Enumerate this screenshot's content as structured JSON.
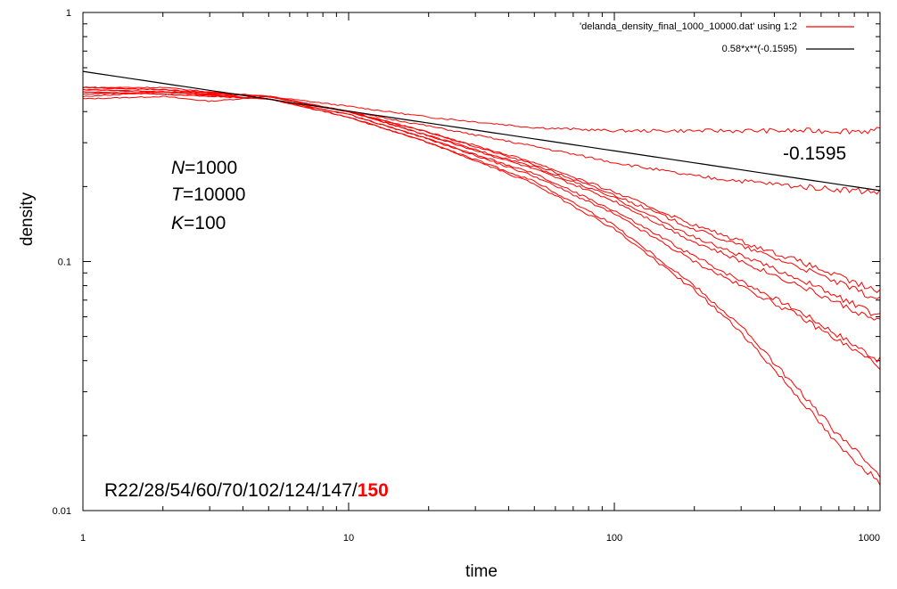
{
  "chart_data": {
    "type": "line",
    "title": "",
    "xlabel": "time",
    "ylabel": "density",
    "xscale": "log",
    "yscale": "log",
    "xlim": [
      1,
      1000
    ],
    "ylim": [
      0.01,
      1
    ],
    "x_ticks": [
      {
        "value": 1,
        "label": "1"
      },
      {
        "value": 10,
        "label": "10"
      },
      {
        "value": 100,
        "label": "100"
      },
      {
        "value": 1000,
        "label": "1000"
      }
    ],
    "y_ticks": [
      {
        "value": 0.01,
        "label": "0.01"
      },
      {
        "value": 0.1,
        "label": "0.1"
      },
      {
        "value": 1,
        "label": "1"
      }
    ],
    "legend": {
      "position": "top-right",
      "entries": [
        {
          "label": "'delanda_density_final_1000_10000.dat'  using 1:2",
          "color": "#ff0000"
        },
        {
          "label": "0.58*x**(-0.1595)",
          "color": "#000000"
        }
      ]
    },
    "fit": {
      "name": "0.58*x**(-0.1595)",
      "a": 0.58,
      "b": -0.1595,
      "color": "#000000"
    },
    "data_color": "#ff0000",
    "series": [
      {
        "x": [
          1,
          2,
          3,
          5,
          10,
          20,
          50,
          100,
          200,
          500,
          1000
        ],
        "y": [
          0.45,
          0.46,
          0.44,
          0.46,
          0.42,
          0.38,
          0.345,
          0.335,
          0.335,
          0.335,
          0.335
        ]
      },
      {
        "x": [
          1,
          2,
          3,
          5,
          10,
          20,
          50,
          100,
          200,
          500,
          1000
        ],
        "y": [
          0.5,
          0.5,
          0.48,
          0.46,
          0.4,
          0.35,
          0.29,
          0.25,
          0.22,
          0.2,
          0.19
        ]
      },
      {
        "x": [
          1,
          2,
          5,
          10,
          20,
          50,
          100,
          200,
          500,
          1000
        ],
        "y": [
          0.47,
          0.48,
          0.46,
          0.4,
          0.33,
          0.25,
          0.19,
          0.14,
          0.1,
          0.075
        ]
      },
      {
        "x": [
          1,
          2,
          5,
          10,
          20,
          50,
          100,
          200,
          500,
          1000
        ],
        "y": [
          0.46,
          0.48,
          0.46,
          0.4,
          0.33,
          0.245,
          0.185,
          0.135,
          0.095,
          0.07
        ]
      },
      {
        "x": [
          1,
          2,
          5,
          10,
          20,
          50,
          100,
          200,
          500,
          1000
        ],
        "y": [
          0.5,
          0.49,
          0.46,
          0.4,
          0.32,
          0.24,
          0.18,
          0.125,
          0.085,
          0.06
        ]
      },
      {
        "x": [
          1,
          2,
          5,
          10,
          20,
          50,
          100,
          200,
          500,
          1000
        ],
        "y": [
          0.5,
          0.49,
          0.46,
          0.4,
          0.32,
          0.235,
          0.175,
          0.12,
          0.08,
          0.057
        ]
      },
      {
        "x": [
          1,
          2,
          5,
          10,
          20,
          50,
          100,
          200,
          500,
          1000
        ],
        "y": [
          0.49,
          0.48,
          0.45,
          0.39,
          0.31,
          0.225,
          0.16,
          0.105,
          0.063,
          0.04
        ]
      },
      {
        "x": [
          1,
          2,
          5,
          10,
          20,
          50,
          100,
          200,
          500,
          1000
        ],
        "y": [
          0.49,
          0.48,
          0.45,
          0.39,
          0.31,
          0.22,
          0.155,
          0.1,
          0.06,
          0.038
        ]
      },
      {
        "x": [
          1,
          2,
          5,
          10,
          20,
          50,
          100,
          200,
          300,
          500,
          700,
          1000
        ],
        "y": [
          0.48,
          0.47,
          0.45,
          0.38,
          0.3,
          0.21,
          0.14,
          0.08,
          0.055,
          0.03,
          0.02,
          0.014
        ]
      },
      {
        "x": [
          1,
          2,
          5,
          10,
          20,
          50,
          100,
          200,
          300,
          500,
          700,
          1000
        ],
        "y": [
          0.48,
          0.47,
          0.45,
          0.38,
          0.3,
          0.205,
          0.135,
          0.077,
          0.052,
          0.028,
          0.018,
          0.013
        ]
      }
    ],
    "annotations": {
      "exponent": "-0.1595",
      "params": [
        {
          "var": "N",
          "rest": "=1000"
        },
        {
          "var": "T",
          "rest": "=10000"
        },
        {
          "var": "K",
          "rest": "=100"
        }
      ],
      "runs_prefix": "R22/28/54/60/70/102/124/147/",
      "runs_highlight": "150",
      "highlight_color": "#ff0000"
    }
  }
}
